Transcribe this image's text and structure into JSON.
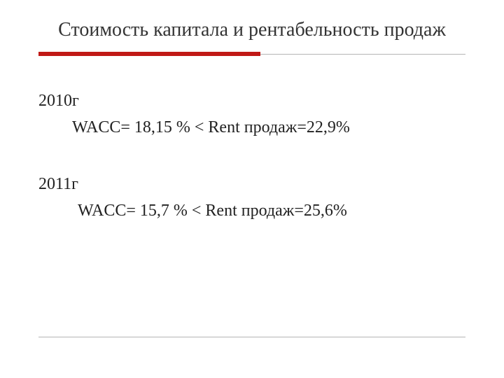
{
  "slide": {
    "title": "Стоимость капитала и рентабельность продаж",
    "divider": {
      "thin_color": "#b5b5b5",
      "accent_color": "#c01916",
      "accent_width_pct": 52
    },
    "body": {
      "year1": "2010г",
      "formula1": "WACC= 18,15 %  < Rent продаж=22,9%",
      "year2": "2011г",
      "formula2": "WACC= 15,7 %  < Rent продаж=25,6%"
    },
    "background_color": "#ffffff",
    "title_fontsize": 28,
    "body_fontsize": 24,
    "text_color": "#222222"
  }
}
